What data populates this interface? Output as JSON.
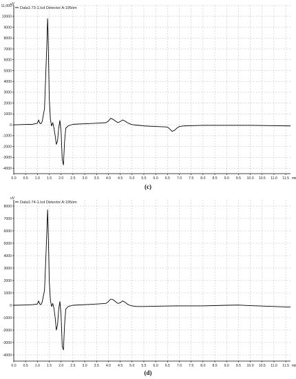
{
  "captions": [
    "(c)",
    "(d)"
  ],
  "chart_data": [
    {
      "type": "line",
      "title": "",
      "legend": "Data1:73-1.lcd Detector A:195nm",
      "y_unit": "uV",
      "x_unit": "min",
      "xlabel": "",
      "ylabel": "",
      "xlim": [
        0.0,
        11.7
      ],
      "ylim": [
        -4500,
        11000
      ],
      "y_ticks": [
        -4000,
        -3000,
        -2000,
        -1000,
        0,
        1000,
        2000,
        3000,
        4000,
        5000,
        6000,
        7000,
        8000,
        9000,
        10000,
        11000
      ],
      "y_tick_labels": [
        "-4000",
        "-3000",
        "-2000",
        "-1000",
        "0",
        "1000",
        "2000",
        "3000",
        "4000",
        "5000",
        "6000",
        "7000",
        "8000",
        "9000",
        "10000",
        "11,000"
      ],
      "x_ticks": [
        0.0,
        0.5,
        1.0,
        1.5,
        2.0,
        2.5,
        3.0,
        3.5,
        4.0,
        4.5,
        5.0,
        5.5,
        6.0,
        6.5,
        7.0,
        7.5,
        8.0,
        8.5,
        9.0,
        9.5,
        10.0,
        10.5,
        11.0,
        11.5
      ],
      "x_tick_labels": [
        "0.0",
        "0.5",
        "1.0",
        "1.5",
        "2.0",
        "2.5",
        "3.0",
        "3.5",
        "4.0",
        "4.5",
        "5.0",
        "5.5",
        "6.0",
        "6.5",
        "7.0",
        "7.5",
        "8.0",
        "8.5",
        "9.0",
        "9.5",
        "10.0",
        "10.5",
        "11.0",
        "11.5"
      ],
      "grid": true,
      "legend_position": "top-left",
      "line_color": "#000000",
      "series": [
        {
          "x": [
            0.0,
            0.4,
            0.8,
            1.0,
            1.05,
            1.1,
            1.15,
            1.2,
            1.3,
            1.35,
            1.4,
            1.43,
            1.45,
            1.48,
            1.5,
            1.55,
            1.6,
            1.65,
            1.7,
            1.75,
            1.8,
            1.85,
            1.9,
            1.95,
            2.0,
            2.05,
            2.1,
            2.15,
            2.2,
            2.3,
            2.5,
            3.0,
            3.5,
            3.9,
            4.0,
            4.1,
            4.2,
            4.3,
            4.4,
            4.5,
            4.6,
            4.7,
            4.8,
            4.9,
            5.0,
            5.2,
            5.5,
            6.0,
            6.5,
            6.6,
            6.7,
            6.8,
            6.9,
            7.0,
            7.2,
            7.5,
            8.0,
            9.0,
            10.0,
            11.0,
            11.7
          ],
          "y": [
            0,
            30,
            50,
            150,
            450,
            150,
            100,
            300,
            1500,
            4500,
            7500,
            9800,
            8500,
            5000,
            2500,
            500,
            -100,
            200,
            -300,
            -1000,
            -1800,
            -1500,
            -300,
            400,
            -600,
            -3200,
            -3700,
            -1500,
            -300,
            -100,
            50,
            100,
            150,
            200,
            350,
            600,
            500,
            350,
            200,
            300,
            450,
            350,
            200,
            100,
            20,
            -30,
            -100,
            -150,
            -200,
            -400,
            -600,
            -500,
            -300,
            -150,
            -100,
            -80,
            -50,
            -50,
            -50,
            -80,
            -100
          ]
        }
      ]
    },
    {
      "type": "line",
      "title": "",
      "legend": "Data1:74-1.lcd Detector A:195nm",
      "y_unit": "uV",
      "x_unit": "min",
      "xlabel": "",
      "ylabel": "",
      "xlim": [
        0.0,
        11.7
      ],
      "ylim": [
        -4500,
        8500
      ],
      "y_ticks": [
        -4000,
        -3000,
        -2000,
        -1000,
        0,
        1000,
        2000,
        3000,
        4000,
        5000,
        6000,
        7000,
        8000
      ],
      "y_tick_labels": [
        "-4000",
        "-3000",
        "-2000",
        "-1000",
        "0",
        "1000",
        "2000",
        "3000",
        "4000",
        "5000",
        "6000",
        "7000",
        "8000"
      ],
      "x_ticks": [
        0.0,
        0.5,
        1.0,
        1.5,
        2.0,
        2.5,
        3.0,
        3.5,
        4.0,
        4.5,
        5.0,
        5.5,
        6.0,
        6.5,
        7.0,
        7.5,
        8.0,
        8.5,
        9.0,
        9.5,
        10.0,
        10.5,
        11.0,
        11.5
      ],
      "x_tick_labels": [
        "0.0",
        "0.5",
        "1.0",
        "1.5",
        "2.0",
        "2.5",
        "3.0",
        "3.5",
        "4.0",
        "4.5",
        "5.0",
        "5.5",
        "6.0",
        "6.5",
        "7.0",
        "7.5",
        "8.0",
        "8.5",
        "9.0",
        "9.5",
        "10.0",
        "10.5",
        "11.0",
        "11.5"
      ],
      "grid": true,
      "legend_position": "top-left",
      "line_color": "#000000",
      "series": [
        {
          "x": [
            0.0,
            0.4,
            0.8,
            1.0,
            1.05,
            1.1,
            1.15,
            1.2,
            1.3,
            1.35,
            1.4,
            1.43,
            1.45,
            1.48,
            1.5,
            1.55,
            1.6,
            1.65,
            1.7,
            1.75,
            1.8,
            1.85,
            1.9,
            1.95,
            2.0,
            2.05,
            2.1,
            2.15,
            2.2,
            2.3,
            2.5,
            3.0,
            3.5,
            3.9,
            4.0,
            4.1,
            4.2,
            4.3,
            4.4,
            4.5,
            4.6,
            4.7,
            4.8,
            4.9,
            5.0,
            5.2,
            5.5,
            6.0,
            7.0,
            8.0,
            9.0,
            9.5,
            10.0,
            11.0,
            11.7
          ],
          "y": [
            0,
            20,
            50,
            100,
            350,
            100,
            50,
            250,
            1200,
            3500,
            6000,
            7700,
            6500,
            4000,
            2000,
            400,
            -100,
            150,
            -250,
            -1000,
            -2000,
            -1600,
            -300,
            300,
            -800,
            -3300,
            -3600,
            -1500,
            -300,
            -100,
            0,
            50,
            100,
            150,
            300,
            500,
            450,
            300,
            150,
            200,
            350,
            250,
            100,
            0,
            -50,
            -100,
            -100,
            -80,
            -50,
            -50,
            0,
            20,
            -30,
            -100,
            -150
          ]
        }
      ]
    }
  ]
}
